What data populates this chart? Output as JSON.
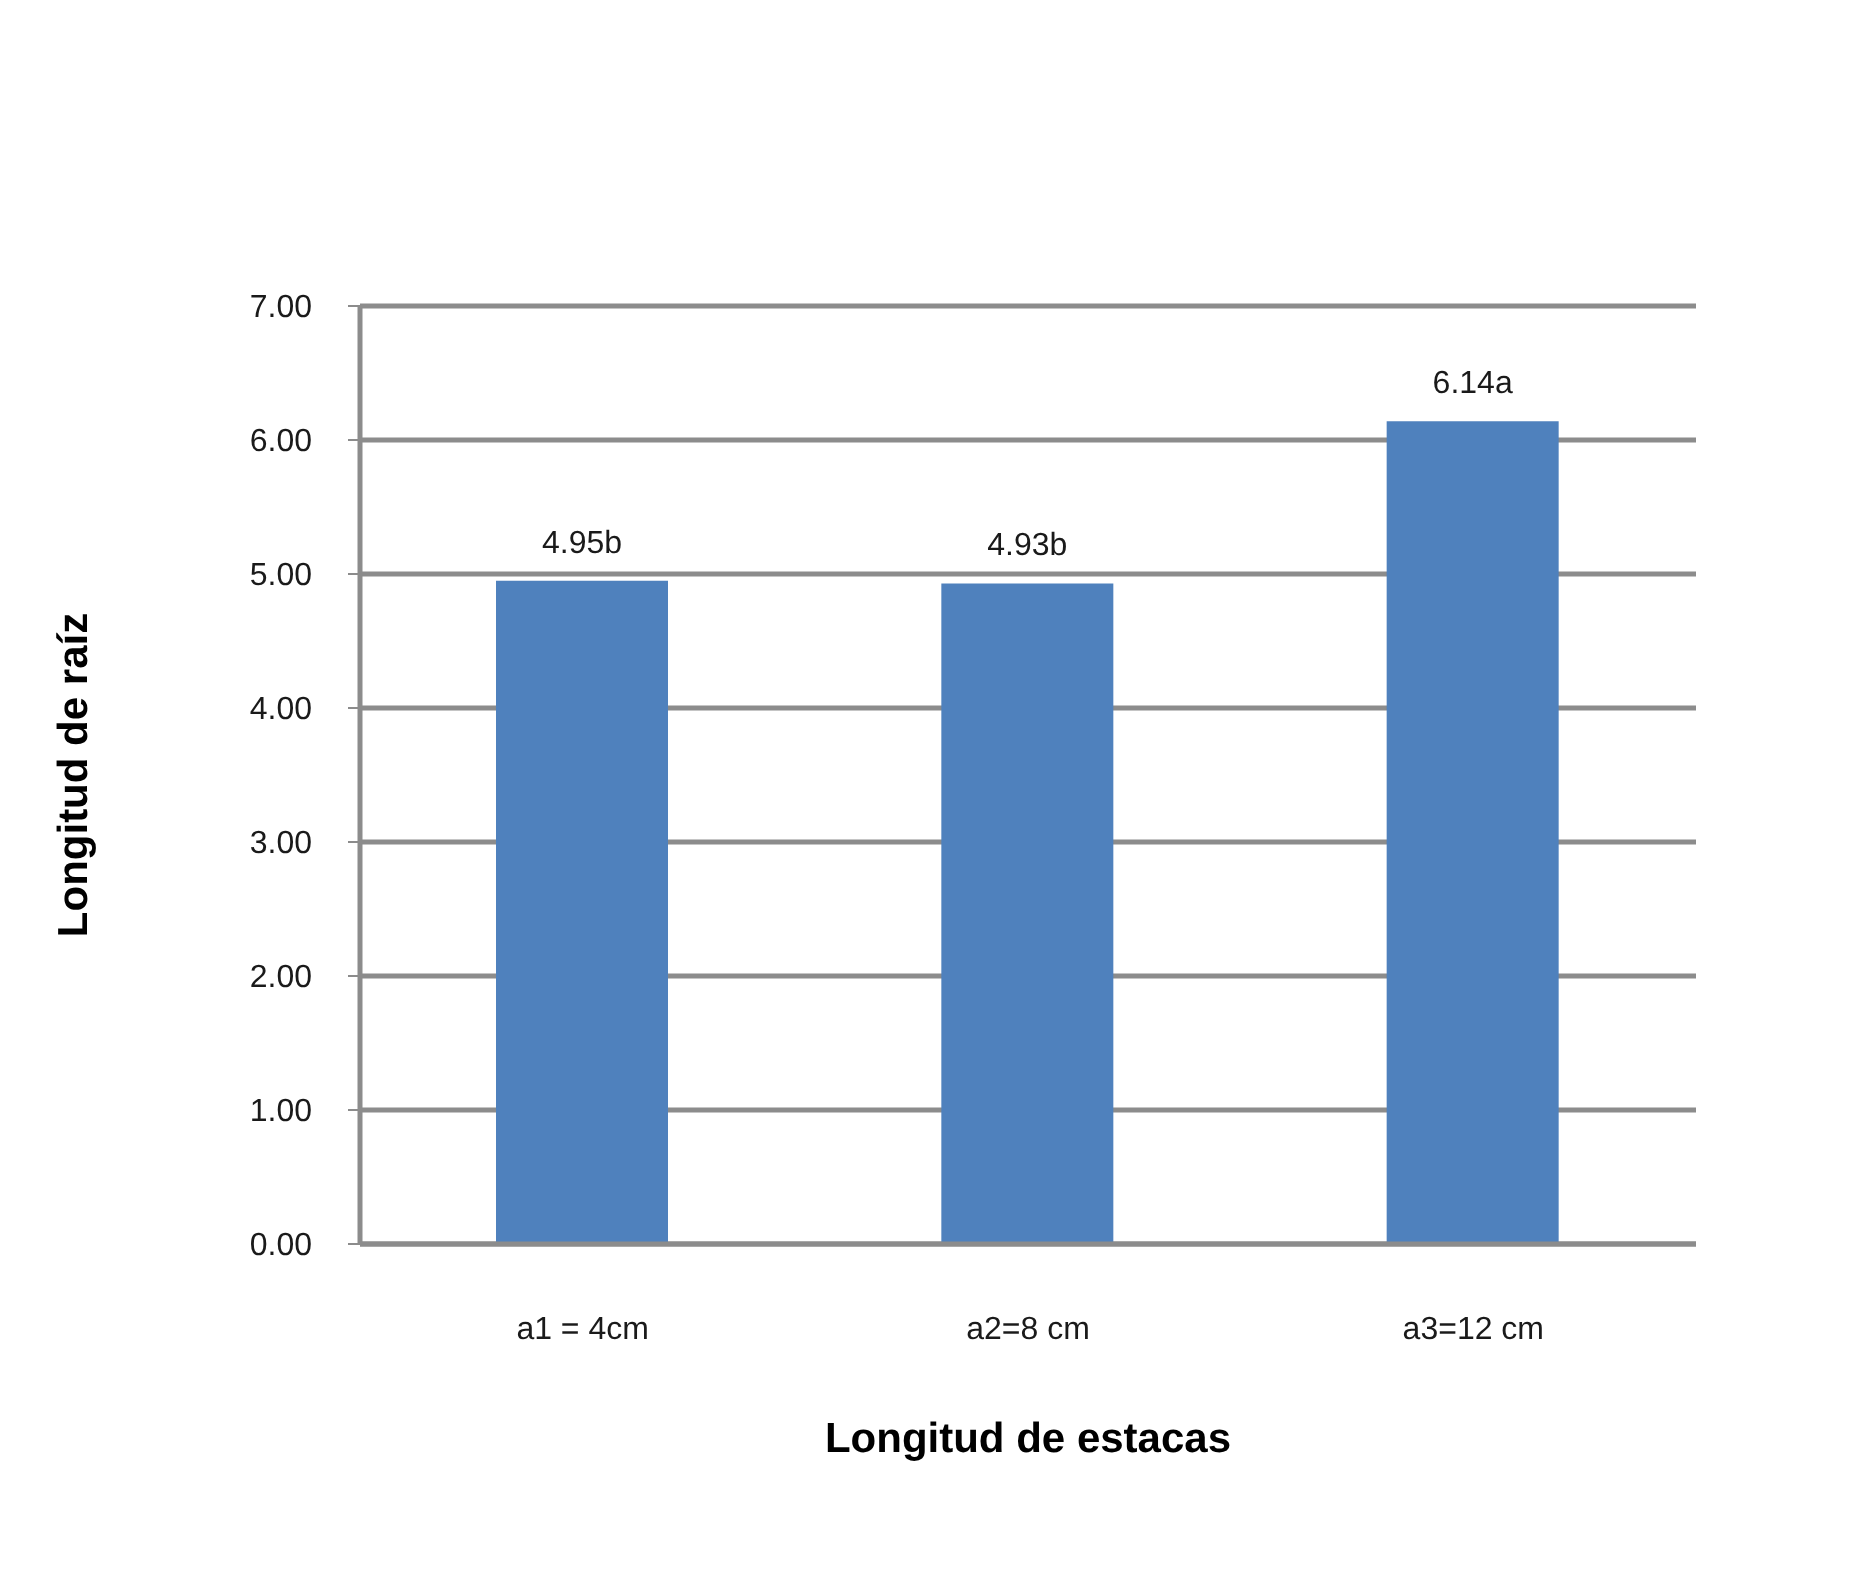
{
  "chart_data": {
    "type": "bar",
    "xlabel": "Longitud de estacas",
    "ylabel": "Longitud de raíz",
    "categories": [
      "a1 = 4cm",
      "a2=8 cm",
      "a3=12 cm"
    ],
    "values": [
      4.95,
      4.93,
      6.14
    ],
    "value_labels": [
      "4.95b",
      "4.93b",
      "6.14a"
    ],
    "color": "#4f81bd",
    "ylim": [
      0,
      7
    ],
    "yticks": [
      {
        "value": 0,
        "label": "0.00"
      },
      {
        "value": 1,
        "label": "1.00"
      },
      {
        "value": 2,
        "label": "2.00"
      },
      {
        "value": 3,
        "label": "3.00"
      },
      {
        "value": 4,
        "label": "4.00"
      },
      {
        "value": 5,
        "label": "5.00"
      },
      {
        "value": 6,
        "label": "6.00"
      },
      {
        "value": 7,
        "label": "7.00"
      }
    ],
    "grid": "y"
  }
}
